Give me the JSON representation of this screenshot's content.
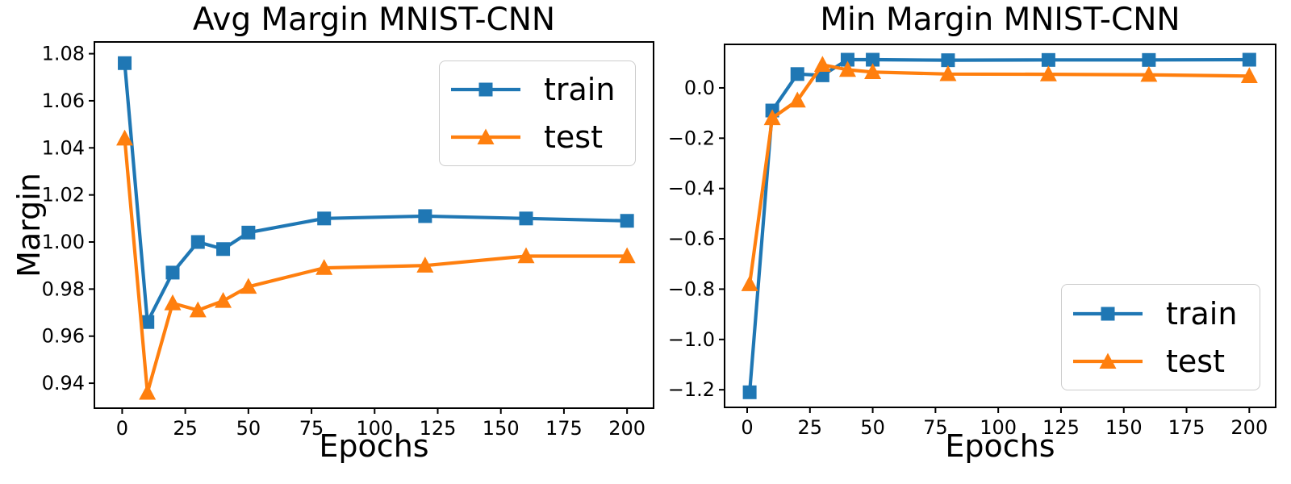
{
  "figure": {
    "background": "#ffffff"
  },
  "colors": {
    "train": "#1f77b4",
    "test": "#ff7f0e",
    "axis": "#000000",
    "legend_border": "#cccccc"
  },
  "legend": {
    "train_label": "train",
    "test_label": "test"
  },
  "chart_data": [
    {
      "type": "line",
      "title": "Avg Margin MNIST-CNN",
      "xlabel": "Epochs",
      "ylabel": "Margin",
      "x": [
        1,
        10,
        20,
        30,
        40,
        50,
        80,
        120,
        160,
        200
      ],
      "series": [
        {
          "name": "train",
          "marker": "square",
          "color": "#1f77b4",
          "values": [
            1.076,
            0.966,
            0.987,
            1.0,
            0.997,
            1.004,
            1.01,
            1.011,
            1.01,
            1.009
          ]
        },
        {
          "name": "test",
          "marker": "triangle",
          "color": "#ff7f0e",
          "values": [
            1.044,
            0.936,
            0.974,
            0.971,
            0.975,
            0.981,
            0.989,
            0.99,
            0.994,
            0.994
          ]
        }
      ],
      "xlim": [
        -11,
        210.5
      ],
      "ylim": [
        0.9294,
        1.085
      ],
      "xticks": [
        0,
        25,
        50,
        75,
        100,
        125,
        150,
        175,
        200
      ],
      "xtick_labels": [
        "0",
        "25",
        "50",
        "75",
        "100",
        "125",
        "150",
        "175",
        "200"
      ],
      "yticks": [
        1.08,
        1.06,
        1.04,
        1.02,
        1.0,
        0.98,
        0.96,
        0.94
      ],
      "ytick_labels": [
        "1.08",
        "1.06",
        "1.04",
        "1.02",
        "1.00",
        "0.98",
        "0.96",
        "0.94"
      ],
      "legend_position": "upper right",
      "grid": false
    },
    {
      "type": "line",
      "title": "Min Margin MNIST-CNN",
      "xlabel": "Epochs",
      "ylabel": "",
      "x": [
        1,
        10,
        20,
        30,
        40,
        50,
        80,
        120,
        160,
        200
      ],
      "series": [
        {
          "name": "train",
          "marker": "square",
          "color": "#1f77b4",
          "values": [
            -1.21,
            -0.09,
            0.055,
            0.05,
            0.112,
            0.112,
            0.11,
            0.111,
            0.111,
            0.112
          ]
        },
        {
          "name": "test",
          "marker": "triangle",
          "color": "#ff7f0e",
          "values": [
            -0.78,
            -0.12,
            -0.05,
            0.092,
            0.072,
            0.063,
            0.055,
            0.054,
            0.052,
            0.047
          ]
        }
      ],
      "xlim": [
        -9,
        210.5
      ],
      "ylim": [
        -1.27,
        0.173
      ],
      "xticks": [
        0,
        25,
        50,
        75,
        100,
        125,
        150,
        175,
        200
      ],
      "xtick_labels": [
        "0",
        "25",
        "50",
        "75",
        "100",
        "125",
        "150",
        "175",
        "200"
      ],
      "yticks": [
        0.0,
        -0.2,
        -0.4,
        -0.6,
        -0.8,
        -1.0,
        -1.2
      ],
      "ytick_labels": [
        "0.0",
        "−0.2",
        "−0.4",
        "−0.6",
        "−0.8",
        "−1.0",
        "−1.2"
      ],
      "legend_position": "lower right",
      "grid": false
    }
  ]
}
